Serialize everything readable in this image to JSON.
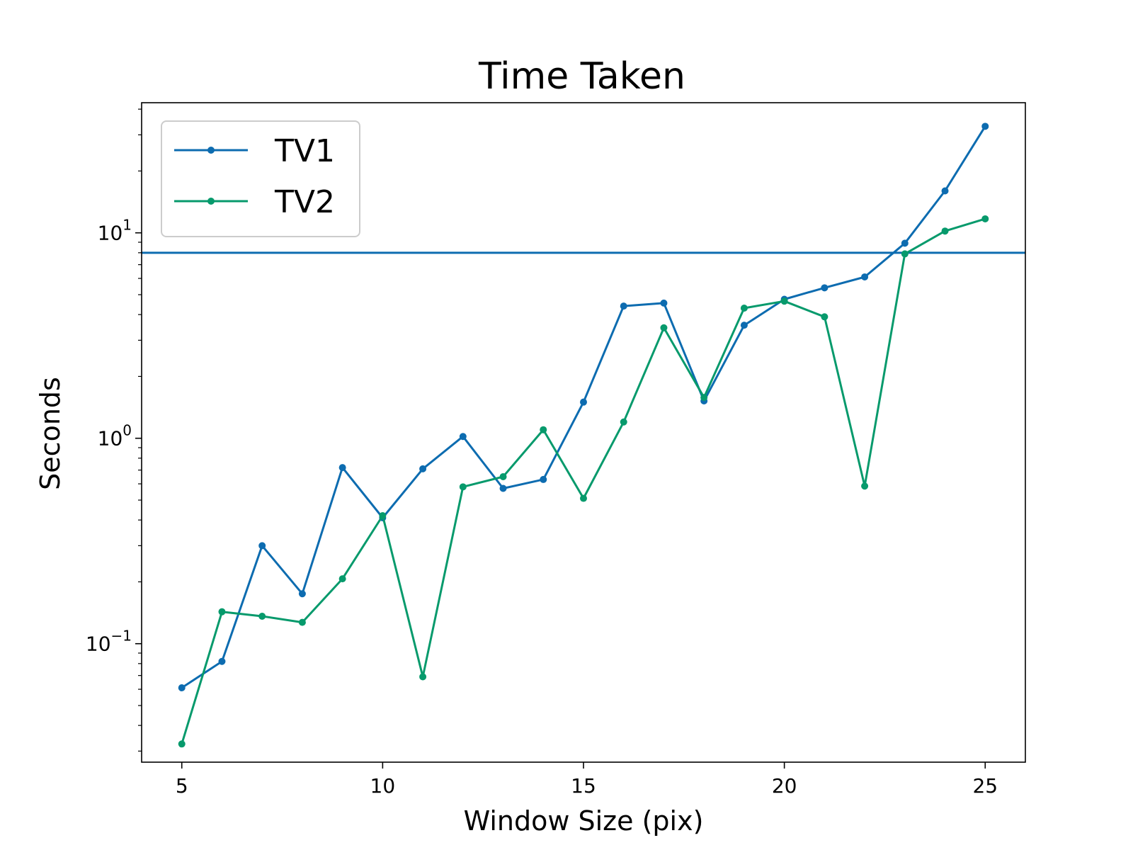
{
  "chart_data": {
    "type": "line",
    "title": "Time Taken",
    "xlabel": "Window Size (pix)",
    "ylabel": "Seconds",
    "xlim": [
      4,
      26
    ],
    "ylim": [
      0.0265,
      43
    ],
    "yscale": "log",
    "xticks": [
      5,
      10,
      15,
      20,
      25
    ],
    "xtick_labels": [
      "5",
      "10",
      "15",
      "20",
      "25"
    ],
    "yticks": [
      {
        "value": 0.1,
        "base": "10",
        "exp": "−1"
      },
      {
        "value": 1,
        "base": "10",
        "exp": "0"
      },
      {
        "value": 10,
        "base": "10",
        "exp": "1"
      }
    ],
    "x": [
      5,
      6,
      7,
      8,
      9,
      10,
      11,
      12,
      13,
      14,
      15,
      16,
      17,
      18,
      19,
      20,
      21,
      22,
      23,
      24,
      25
    ],
    "series": [
      {
        "name": "TV1",
        "color": "#0d6cb0",
        "values": [
          0.061,
          0.082,
          0.3,
          0.175,
          0.72,
          0.41,
          0.71,
          1.02,
          0.57,
          0.63,
          1.5,
          4.4,
          4.55,
          1.52,
          3.55,
          4.75,
          5.4,
          6.1,
          8.9,
          16.0,
          33.0
        ]
      },
      {
        "name": "TV2",
        "color": "#079a6c",
        "values": [
          0.0325,
          0.143,
          0.136,
          0.127,
          0.207,
          0.42,
          0.069,
          0.58,
          0.65,
          1.1,
          0.51,
          1.2,
          3.45,
          1.58,
          4.3,
          4.65,
          3.9,
          0.585,
          7.9,
          10.2,
          11.7
        ]
      }
    ],
    "hline": {
      "value": 8.0,
      "color": "#0d6cb0"
    },
    "legend": {
      "position": "top-left"
    },
    "grid": false
  }
}
